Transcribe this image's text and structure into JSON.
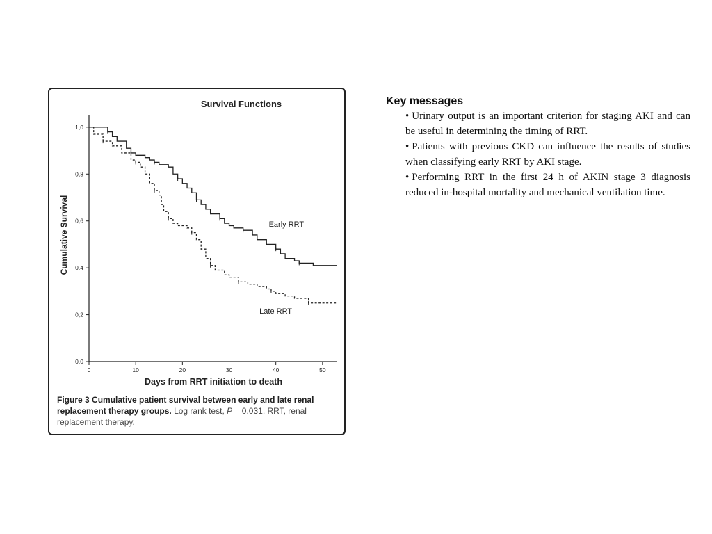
{
  "figure": {
    "caption": {
      "label": "Figure 3",
      "bold_text": "Cumulative patient survival between early and late renal replacement therapy groups.",
      "light_text_1": "Log rank test, ",
      "p_symbol": "P",
      "light_text_2": " = 0.031. RRT, renal replacement therapy."
    }
  },
  "chart_data": {
    "type": "line",
    "title": "Survival Functions",
    "xlabel": "Days from RRT initiation to death",
    "ylabel": "Cumulative Survival",
    "xlim": [
      0,
      53
    ],
    "ylim": [
      0,
      1.05
    ],
    "x_ticks": [
      "0",
      "10",
      "20",
      "30",
      "40",
      "50"
    ],
    "x_tick_values": [
      0,
      10,
      20,
      30,
      40,
      50
    ],
    "y_ticks": [
      "0,0",
      "0,2",
      "0,4",
      "0,6",
      "0,8",
      "1,0"
    ],
    "y_tick_values": [
      0,
      0.2,
      0.4,
      0.6,
      0.8,
      1.0
    ],
    "grid": false,
    "series": [
      {
        "name": "Early RRT",
        "style": "solid",
        "color": "#222222",
        "label_position": [
          38.5,
          0.575
        ],
        "points": [
          [
            0,
            1.0
          ],
          [
            3,
            1.0
          ],
          [
            4,
            0.98
          ],
          [
            5,
            0.96
          ],
          [
            6,
            0.94
          ],
          [
            8,
            0.91
          ],
          [
            9,
            0.89
          ],
          [
            10,
            0.88
          ],
          [
            12,
            0.87
          ],
          [
            13,
            0.86
          ],
          [
            14,
            0.85
          ],
          [
            15,
            0.84
          ],
          [
            17,
            0.83
          ],
          [
            18,
            0.8
          ],
          [
            19,
            0.78
          ],
          [
            20,
            0.76
          ],
          [
            21,
            0.74
          ],
          [
            22,
            0.72
          ],
          [
            23,
            0.69
          ],
          [
            24,
            0.67
          ],
          [
            25,
            0.65
          ],
          [
            26,
            0.63
          ],
          [
            28,
            0.61
          ],
          [
            29,
            0.59
          ],
          [
            30,
            0.58
          ],
          [
            31,
            0.57
          ],
          [
            33,
            0.56
          ],
          [
            35,
            0.54
          ],
          [
            36,
            0.52
          ],
          [
            38,
            0.5
          ],
          [
            40,
            0.48
          ],
          [
            41,
            0.46
          ],
          [
            42,
            0.44
          ],
          [
            44,
            0.43
          ],
          [
            45,
            0.42
          ],
          [
            48,
            0.41
          ],
          [
            53,
            0.41
          ]
        ]
      },
      {
        "name": "Late RRT",
        "style": "dashed",
        "color": "#222222",
        "label_position": [
          36.5,
          0.205
        ],
        "points": [
          [
            0,
            1.0
          ],
          [
            1,
            0.97
          ],
          [
            3,
            0.94
          ],
          [
            5,
            0.92
          ],
          [
            7,
            0.89
          ],
          [
            9,
            0.86
          ],
          [
            10,
            0.85
          ],
          [
            11,
            0.83
          ],
          [
            12,
            0.8
          ],
          [
            13,
            0.76
          ],
          [
            14,
            0.73
          ],
          [
            15,
            0.71
          ],
          [
            15.5,
            0.67
          ],
          [
            16,
            0.64
          ],
          [
            17,
            0.61
          ],
          [
            18,
            0.59
          ],
          [
            19,
            0.58
          ],
          [
            21,
            0.57
          ],
          [
            22,
            0.55
          ],
          [
            23,
            0.52
          ],
          [
            24,
            0.48
          ],
          [
            25,
            0.44
          ],
          [
            26,
            0.41
          ],
          [
            27,
            0.39
          ],
          [
            29,
            0.37
          ],
          [
            30,
            0.36
          ],
          [
            32,
            0.34
          ],
          [
            34,
            0.33
          ],
          [
            36,
            0.32
          ],
          [
            38,
            0.31
          ],
          [
            39,
            0.3
          ],
          [
            40,
            0.29
          ],
          [
            42,
            0.28
          ],
          [
            44,
            0.27
          ],
          [
            47,
            0.25
          ],
          [
            53,
            0.25
          ]
        ]
      }
    ]
  },
  "key_messages": {
    "title": "Key messages",
    "bullet_char": "•",
    "items": [
      "Urinary output is an important criterion for staging AKI and can be useful in determining the timing of RRT.",
      "Patients with previous CKD can influence the results of studies when classifying early RRT by AKI stage.",
      "Performing RRT in the first 24 h of AKIN stage 3 diagnosis reduced in-hospital mortality and mechanical ventilation time."
    ]
  }
}
